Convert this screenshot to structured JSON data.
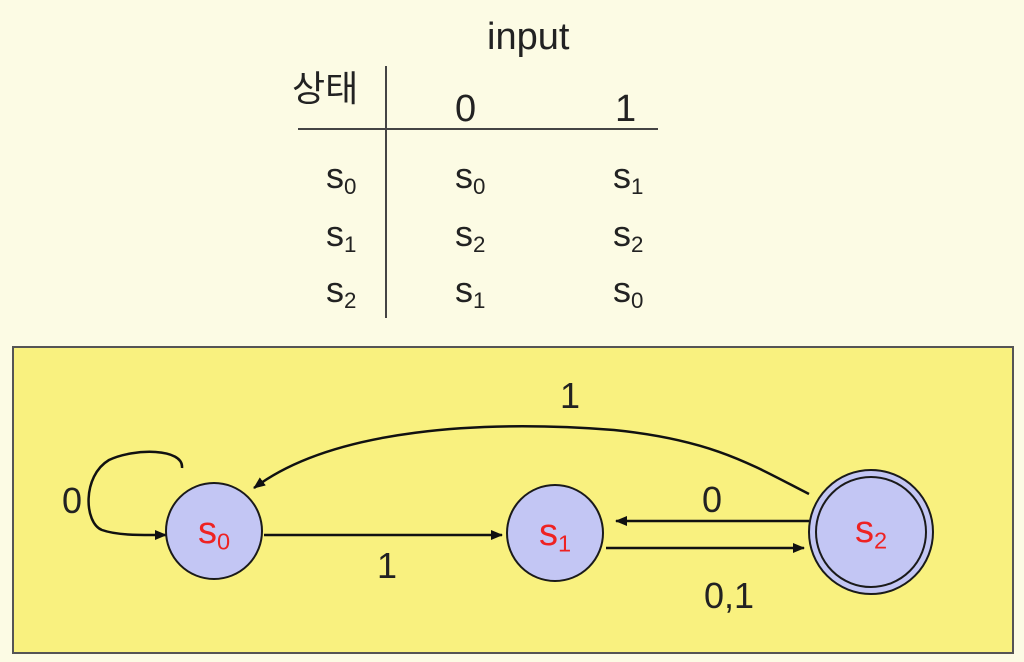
{
  "table": {
    "header": "input",
    "state_header": "상태",
    "columns": [
      "0",
      "1"
    ],
    "rows": [
      {
        "state": "s",
        "state_sub": "0",
        "on0": "s",
        "on0_sub": "0",
        "on1": "s",
        "on1_sub": "1"
      },
      {
        "state": "s",
        "state_sub": "1",
        "on0": "s",
        "on0_sub": "2",
        "on1": "s",
        "on1_sub": "2"
      },
      {
        "state": "s",
        "state_sub": "2",
        "on0": "s",
        "on0_sub": "1",
        "on1": "s",
        "on1_sub": "0"
      }
    ]
  },
  "diagram": {
    "nodes": [
      {
        "id": "s0",
        "label": "s",
        "sub": "0",
        "accepting": false
      },
      {
        "id": "s1",
        "label": "s",
        "sub": "1",
        "accepting": false
      },
      {
        "id": "s2",
        "label": "s",
        "sub": "2",
        "accepting": true
      }
    ],
    "edges": [
      {
        "from": "s0",
        "to": "s0",
        "label": "0"
      },
      {
        "from": "s0",
        "to": "s1",
        "label": "1"
      },
      {
        "from": "s1",
        "to": "s2",
        "label": "0,1"
      },
      {
        "from": "s2",
        "to": "s1",
        "label": "0"
      },
      {
        "from": "s2",
        "to": "s0",
        "label": "1"
      }
    ]
  },
  "colors": {
    "node_fill": "#c3c6f4",
    "node_stroke": "#1a1a1a",
    "node_label": "#ee2222",
    "panel_fill": "#f9f17f",
    "background": "#fcfbe4"
  }
}
